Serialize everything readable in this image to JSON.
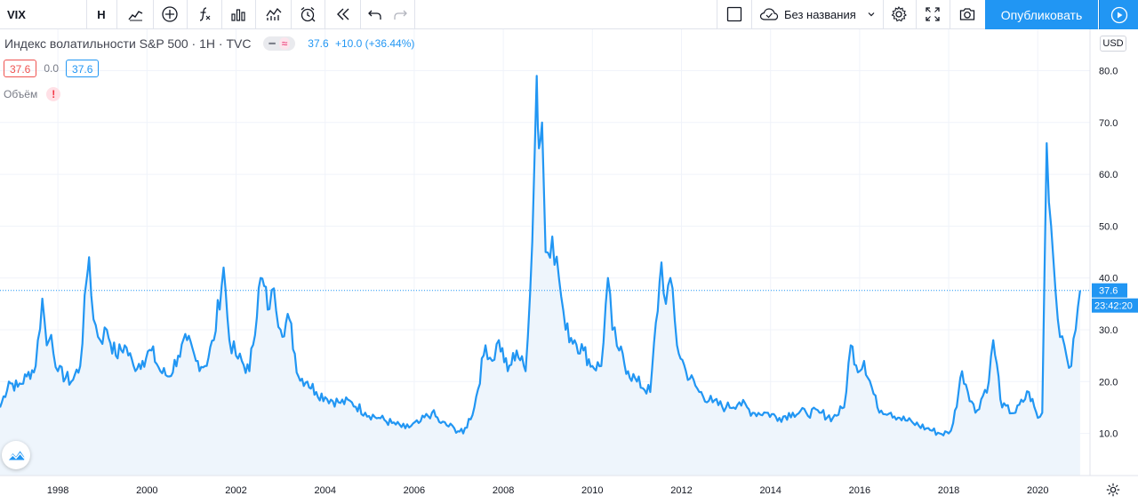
{
  "toolbar": {
    "symbol": "VIX",
    "interval": "Н",
    "layout_name": "Без названия",
    "publish_label": "Опубликовать",
    "icons": [
      "bar-style-icon",
      "add-compare-icon",
      "indicators-icon",
      "templates-icon",
      "chart-type-icon",
      "alert-icon",
      "replay-icon",
      "undo-icon",
      "redo-icon",
      "layout-square-icon",
      "cloud-icon",
      "chevron-down-icon",
      "settings-icon",
      "fullscreen-icon",
      "camera-icon",
      "play-icon"
    ]
  },
  "legend": {
    "title": "Индекс волатильности S&P 500 · 1Н · TVC",
    "last": "37.6",
    "change": "+10.0 (+36.44%)",
    "sell": "37.6",
    "spread": "0.0",
    "buy": "37.6",
    "volume_label": "Объём",
    "volume_warning": "!"
  },
  "price_axis": {
    "currency": "USD",
    "last_price_label": "37.6",
    "countdown": "23:42:20"
  },
  "colors": {
    "series": "#2196f3",
    "fill": "#eef5fc",
    "grid": "#f0f3fa",
    "publish": "#2196f3"
  },
  "chart_data": {
    "type": "area",
    "ylim": [
      0,
      85
    ],
    "yticks": [
      10,
      20,
      30,
      40,
      50,
      60,
      70,
      80
    ],
    "ytick_labels": [
      "10.0",
      "20.0",
      "30.0",
      "40.0",
      "50.0",
      "60.0",
      "70.0",
      "80.0"
    ],
    "xtick_labels": [
      "1998",
      "2000",
      "2002",
      "2004",
      "2006",
      "2008",
      "2010",
      "2012",
      "2014",
      "2016",
      "2018",
      "2020"
    ],
    "xlim": [
      1996.7,
      2022.25
    ],
    "last_value": 37.6,
    "x": [
      1996.7,
      1996.9,
      1997.1,
      1997.3,
      1997.5,
      1997.65,
      1997.75,
      1997.85,
      1998.0,
      1998.3,
      1998.5,
      1998.65,
      1998.7,
      1998.8,
      1998.95,
      1999.1,
      1999.3,
      1999.5,
      1999.7,
      1999.9,
      2000.1,
      2000.3,
      2000.5,
      2000.7,
      2000.9,
      2001.1,
      2001.3,
      2001.5,
      2001.72,
      2001.85,
      2002.0,
      2002.3,
      2002.55,
      2002.75,
      2002.85,
      2003.0,
      2003.2,
      2003.4,
      2003.6,
      2003.8,
      2004.0,
      2004.3,
      2004.6,
      2004.9,
      2005.2,
      2005.5,
      2005.8,
      2006.1,
      2006.4,
      2006.6,
      2006.9,
      2007.1,
      2007.35,
      2007.6,
      2007.75,
      2007.9,
      2008.1,
      2008.3,
      2008.5,
      2008.65,
      2008.75,
      2008.8,
      2008.87,
      2008.95,
      2009.1,
      2009.25,
      2009.4,
      2009.6,
      2009.8,
      2010.0,
      2010.2,
      2010.35,
      2010.45,
      2010.6,
      2010.8,
      2011.0,
      2011.3,
      2011.55,
      2011.65,
      2011.75,
      2011.9,
      2012.1,
      2012.4,
      2012.7,
      2013.0,
      2013.3,
      2013.6,
      2013.9,
      2014.2,
      2014.5,
      2014.8,
      2015.1,
      2015.4,
      2015.65,
      2015.8,
      2016.0,
      2016.1,
      2016.4,
      2016.7,
      2016.9,
      2017.2,
      2017.5,
      2017.8,
      2018.0,
      2018.1,
      2018.3,
      2018.6,
      2018.9,
      2019.0,
      2019.2,
      2019.5,
      2019.8,
      2020.0,
      2020.1,
      2020.2,
      2020.3,
      2020.45,
      2020.6,
      2020.75,
      2020.85,
      2020.95
    ],
    "values": [
      15,
      20,
      19,
      21,
      23,
      36,
      27,
      29,
      22,
      20,
      23,
      40,
      44,
      32,
      28,
      30,
      25,
      27,
      23,
      24,
      26,
      22,
      21,
      25,
      28,
      24,
      23,
      28,
      42,
      28,
      25,
      22,
      40,
      34,
      38,
      30,
      32,
      21,
      20,
      18,
      17,
      16,
      16,
      14,
      13,
      12,
      11,
      12,
      14,
      12,
      11,
      10,
      15,
      27,
      24,
      28,
      22,
      26,
      22,
      47,
      79,
      65,
      70,
      45,
      48,
      40,
      30,
      28,
      26,
      23,
      23,
      40,
      30,
      26,
      22,
      20,
      18,
      43,
      35,
      40,
      27,
      22,
      18,
      16,
      15,
      16,
      14,
      14,
      13,
      14,
      14,
      14,
      13,
      15,
      27,
      22,
      24,
      15,
      14,
      13,
      12,
      11,
      10,
      10,
      12,
      22,
      14,
      20,
      28,
      15,
      14,
      18,
      13,
      14,
      66,
      50,
      32,
      27,
      23,
      30,
      37.6
    ]
  }
}
